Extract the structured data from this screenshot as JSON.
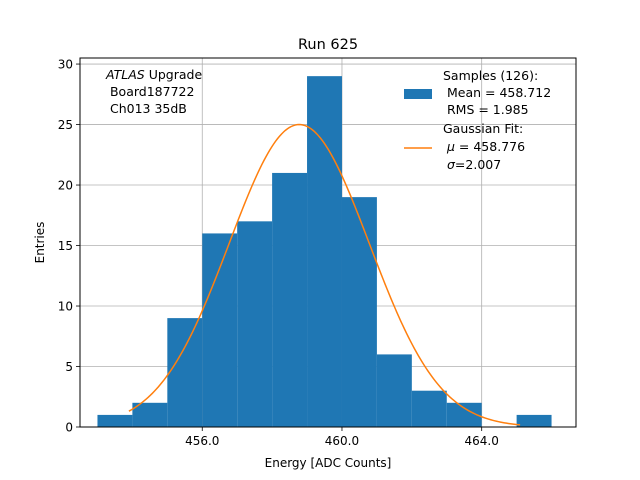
{
  "chart_data": {
    "type": "bar",
    "title": "Run 625",
    "xlabel": "Energy [ADC Counts]",
    "ylabel": "Entries",
    "xlim": [
      452.5,
      466.7
    ],
    "ylim": [
      0,
      30.5
    ],
    "grid": true,
    "x_ticks": [
      456,
      460,
      464
    ],
    "x_tick_labels": [
      "456.0",
      "460.0",
      "464.0"
    ],
    "y_ticks": [
      0,
      5,
      10,
      15,
      20,
      25,
      30
    ],
    "y_tick_labels": [
      "0",
      "5",
      "10",
      "15",
      "20",
      "25",
      "30"
    ],
    "histogram": {
      "name": "Samples",
      "color": "#1f77b4",
      "bin_edges": [
        453,
        454,
        455,
        456,
        457,
        458,
        459,
        460,
        461,
        462,
        463,
        464,
        465,
        466
      ],
      "counts": [
        1,
        2,
        9,
        16,
        17,
        21,
        29,
        19,
        6,
        3,
        2,
        0,
        1
      ]
    },
    "fit": {
      "name": "Gaussian Fit",
      "color": "#ff7f0e",
      "mu": 458.776,
      "sigma": 2.007,
      "x_range": [
        453.9,
        465.1
      ],
      "amplitude": 25.0
    },
    "legend": {
      "position": "top-right",
      "samples_lines": [
        "Samples (126):",
        " Mean = 458.712",
        " RMS = 1.985"
      ],
      "fit_line1": "Gaussian Fit:",
      "fit_mu_symbol": "μ",
      "fit_mu_value": " = 458.776",
      "fit_sigma_symbol": "σ",
      "fit_sigma_value": "=2.007"
    },
    "annotation": {
      "atlas": "ATLAS",
      "upgrade": " Upgrade",
      "board": " Board187722",
      "channel": " Ch013 35dB"
    }
  }
}
